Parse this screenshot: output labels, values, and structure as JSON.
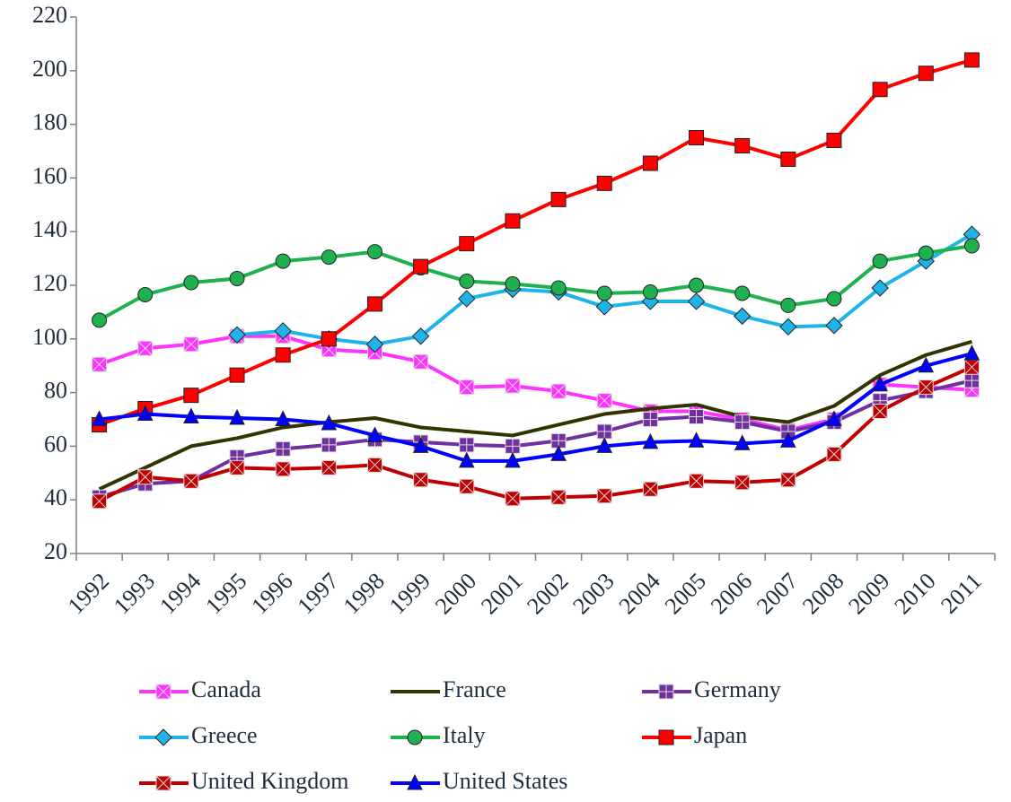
{
  "chart_data": {
    "type": "line",
    "categories": [
      "1992",
      "1993",
      "1994",
      "1995",
      "1996",
      "1997",
      "1998",
      "1999",
      "2000",
      "2001",
      "2002",
      "2003",
      "2004",
      "2005",
      "2006",
      "2007",
      "2008",
      "2009",
      "2010",
      "2011"
    ],
    "ylim": [
      20,
      220
    ],
    "yticks": [
      20,
      40,
      60,
      80,
      100,
      120,
      140,
      160,
      180,
      200,
      220
    ],
    "grid": false,
    "legend": "bottom",
    "series": [
      {
        "name": "Canada",
        "color": "#ff33ff",
        "marker": "square-x",
        "values": [
          90.5,
          96.5,
          98,
          101,
          101,
          96,
          95,
          91.5,
          82,
          82.5,
          80.5,
          77,
          73,
          73,
          70,
          66,
          70,
          83,
          82,
          81
        ]
      },
      {
        "name": "France",
        "color": "#333300",
        "marker": "none",
        "values": [
          44,
          52,
          60,
          63,
          67,
          69,
          70.5,
          67,
          65.5,
          64,
          68,
          72,
          74,
          75.5,
          71,
          69,
          75,
          86.5,
          94,
          99
        ]
      },
      {
        "name": "Germany",
        "color": "#7030a0",
        "marker": "square-plus",
        "values": [
          41,
          46,
          47,
          56,
          59,
          60.5,
          62.5,
          61.5,
          60.5,
          60,
          62,
          65.5,
          70,
          71,
          69,
          65.5,
          69,
          77,
          80.5,
          84.5
        ]
      },
      {
        "name": "Greece",
        "color": "#1fb4e8",
        "marker": "diamond",
        "values": [
          null,
          null,
          null,
          101.5,
          103,
          100,
          98,
          101,
          115,
          118.5,
          117.5,
          112,
          114,
          114,
          108.5,
          104.5,
          105,
          119,
          129,
          139
        ]
      },
      {
        "name": "Italy",
        "color": "#1fb050",
        "marker": "circle",
        "values": [
          107,
          116.5,
          121,
          122.5,
          129,
          130.5,
          132.5,
          126.5,
          121.5,
          120.5,
          119,
          117,
          117.5,
          120,
          117,
          112.5,
          115,
          129,
          132,
          134.7
        ]
      },
      {
        "name": "Japan",
        "color": "#ff0000",
        "marker": "square",
        "values": [
          68,
          74,
          79,
          86.5,
          94,
          100,
          113,
          127,
          135.5,
          144,
          152,
          158,
          165.5,
          175,
          172,
          167,
          174,
          193,
          199,
          204
        ]
      },
      {
        "name": "United Kingdom",
        "color": "#c00000",
        "marker": "square-x",
        "values": [
          39.5,
          48.5,
          47,
          52,
          51.5,
          52,
          53,
          47.5,
          45,
          40.5,
          41,
          41.5,
          44,
          47,
          46.5,
          47.5,
          57,
          73,
          82,
          89.5
        ]
      },
      {
        "name": "United States",
        "color": "#0000ff",
        "marker": "triangle",
        "values": [
          70,
          72,
          71,
          70.5,
          70,
          68.5,
          64,
          60,
          54.5,
          54.5,
          57,
          60,
          61.5,
          62,
          61,
          62,
          70,
          83,
          90,
          94.5
        ]
      }
    ]
  }
}
